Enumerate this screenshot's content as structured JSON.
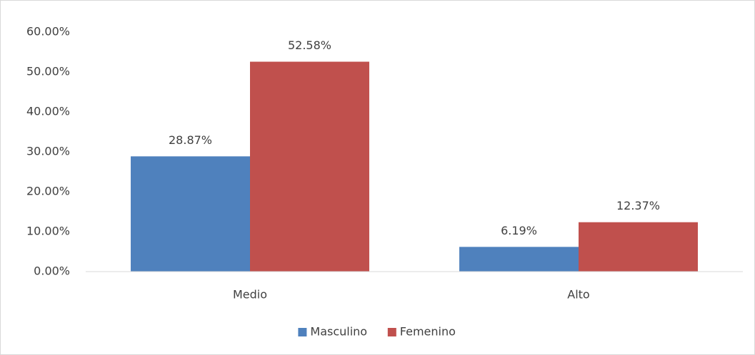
{
  "chart_data": {
    "type": "bar",
    "categories": [
      "Medio",
      "Alto"
    ],
    "series": [
      {
        "name": "Masculino",
        "color": "#4f81bd",
        "values": [
          28.87,
          6.19
        ],
        "value_labels": [
          "28.87%",
          "6.19%"
        ]
      },
      {
        "name": "Femenino",
        "color": "#c0504d",
        "values": [
          52.58,
          12.37
        ],
        "value_labels": [
          "52.58%",
          "12.37%"
        ]
      }
    ],
    "ylim": [
      0,
      60
    ],
    "yticks": [
      {
        "value": 0,
        "label": "0.00%"
      },
      {
        "value": 10,
        "label": "10.00%"
      },
      {
        "value": 20,
        "label": "20.00%"
      },
      {
        "value": 30,
        "label": "30.00%"
      },
      {
        "value": 40,
        "label": "40.00%"
      },
      {
        "value": 50,
        "label": "50.00%"
      },
      {
        "value": 60,
        "label": "60.00%"
      }
    ],
    "grid": false,
    "legend": "bottom"
  }
}
